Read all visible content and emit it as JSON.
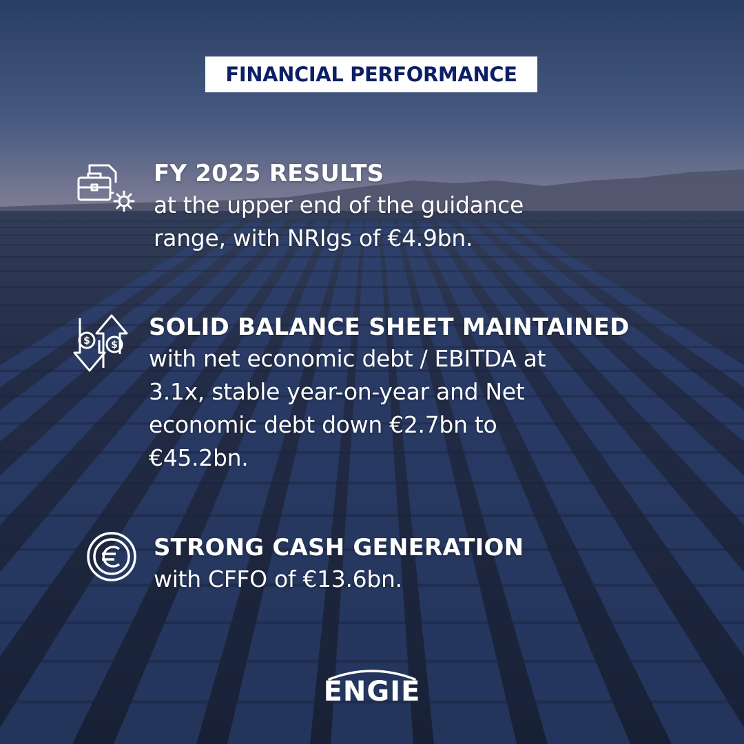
{
  "title": "FINANCIAL PERFORMANCE",
  "items": [
    {
      "icon": "briefcase-gear-icon",
      "heading": "FY 2025 RESULTS",
      "lines": [
        "at the upper end of the guidance",
        "range, with NRIgs of €4.9bn."
      ]
    },
    {
      "icon": "dollar-arrows-icon",
      "heading": "SOLID BALANCE SHEET MAINTAINED",
      "lines": [
        "with net economic debt / EBITDA at",
        "3.1x, stable year-on-year and Net",
        "economic debt down €2.7bn to",
        "€45.2bn."
      ]
    },
    {
      "icon": "euro-coin-icon",
      "heading": "STRONG CASH GENERATION",
      "lines": [
        "with CFFO of €13.6bn."
      ]
    }
  ],
  "logo": {
    "text": "ENGIE"
  },
  "colors": {
    "title_text": "#0c1f66",
    "sky_top": "#2f4a78",
    "sky_horizon": "#8c8fa8",
    "panels": "#2e4474",
    "text": "#ffffff"
  }
}
